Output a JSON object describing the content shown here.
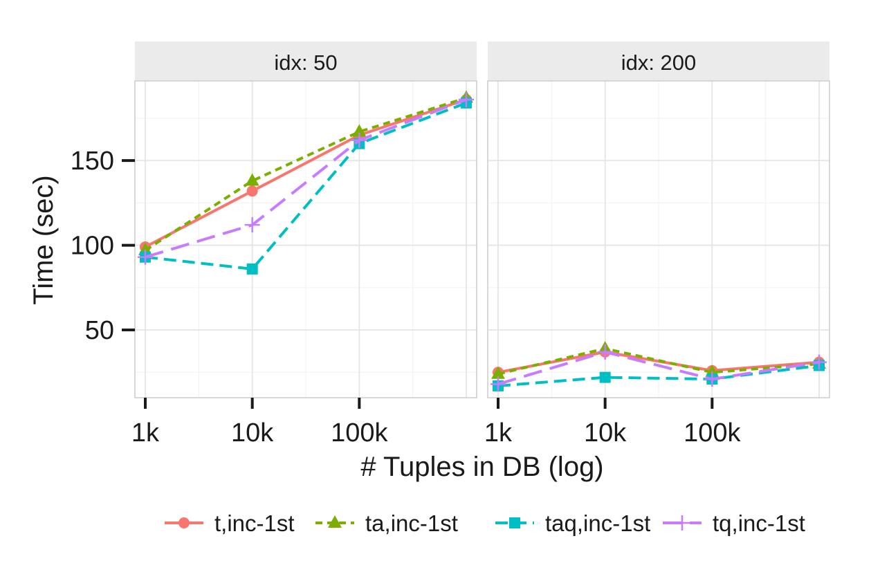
{
  "chart_data": {
    "type": "line",
    "xlabel": "# Tuples in DB (log)",
    "ylabel": "Time (sec)",
    "x_scale": "log10",
    "x_ticks": [
      1000,
      10000,
      100000
    ],
    "x_tick_labels": [
      "1k",
      "10k",
      "100k"
    ],
    "xlim": [
      800,
      1250000
    ],
    "y_ticks": [
      50,
      100,
      150
    ],
    "y_tick_labels": [
      "50",
      "100",
      "150"
    ],
    "ylim": [
      10,
      197
    ],
    "x": [
      1000,
      10000,
      100000,
      1000000
    ],
    "grid": true,
    "legend_position": "bottom",
    "colors": {
      "t,inc-1st": "#F8766D",
      "ta,inc-1st": "#7CAE00",
      "taq,inc-1st": "#00BFC4",
      "tq,inc-1st": "#C77CFF"
    },
    "legend": [
      "t,inc-1st",
      "ta,inc-1st",
      "taq,inc-1st",
      "tq,inc-1st"
    ],
    "facets": [
      {
        "label": "idx: 50",
        "series": [
          {
            "name": "t,inc-1st",
            "values": [
              99,
              132,
              165,
              186
            ]
          },
          {
            "name": "ta,inc-1st",
            "values": [
              97,
              138,
              167,
              187
            ]
          },
          {
            "name": "taq,inc-1st",
            "values": [
              93,
              86,
              160,
              184
            ]
          },
          {
            "name": "tq,inc-1st",
            "values": [
              93,
              112,
              162,
              186
            ]
          }
        ]
      },
      {
        "label": "idx: 200",
        "series": [
          {
            "name": "t,inc-1st",
            "values": [
              25,
              37,
              26,
              31
            ]
          },
          {
            "name": "ta,inc-1st",
            "values": [
              24,
              39,
              25,
              30
            ]
          },
          {
            "name": "taq,inc-1st",
            "values": [
              17,
              22,
              21,
              29
            ]
          },
          {
            "name": "tq,inc-1st",
            "values": [
              18,
              37,
              21,
              31
            ]
          }
        ]
      }
    ]
  }
}
